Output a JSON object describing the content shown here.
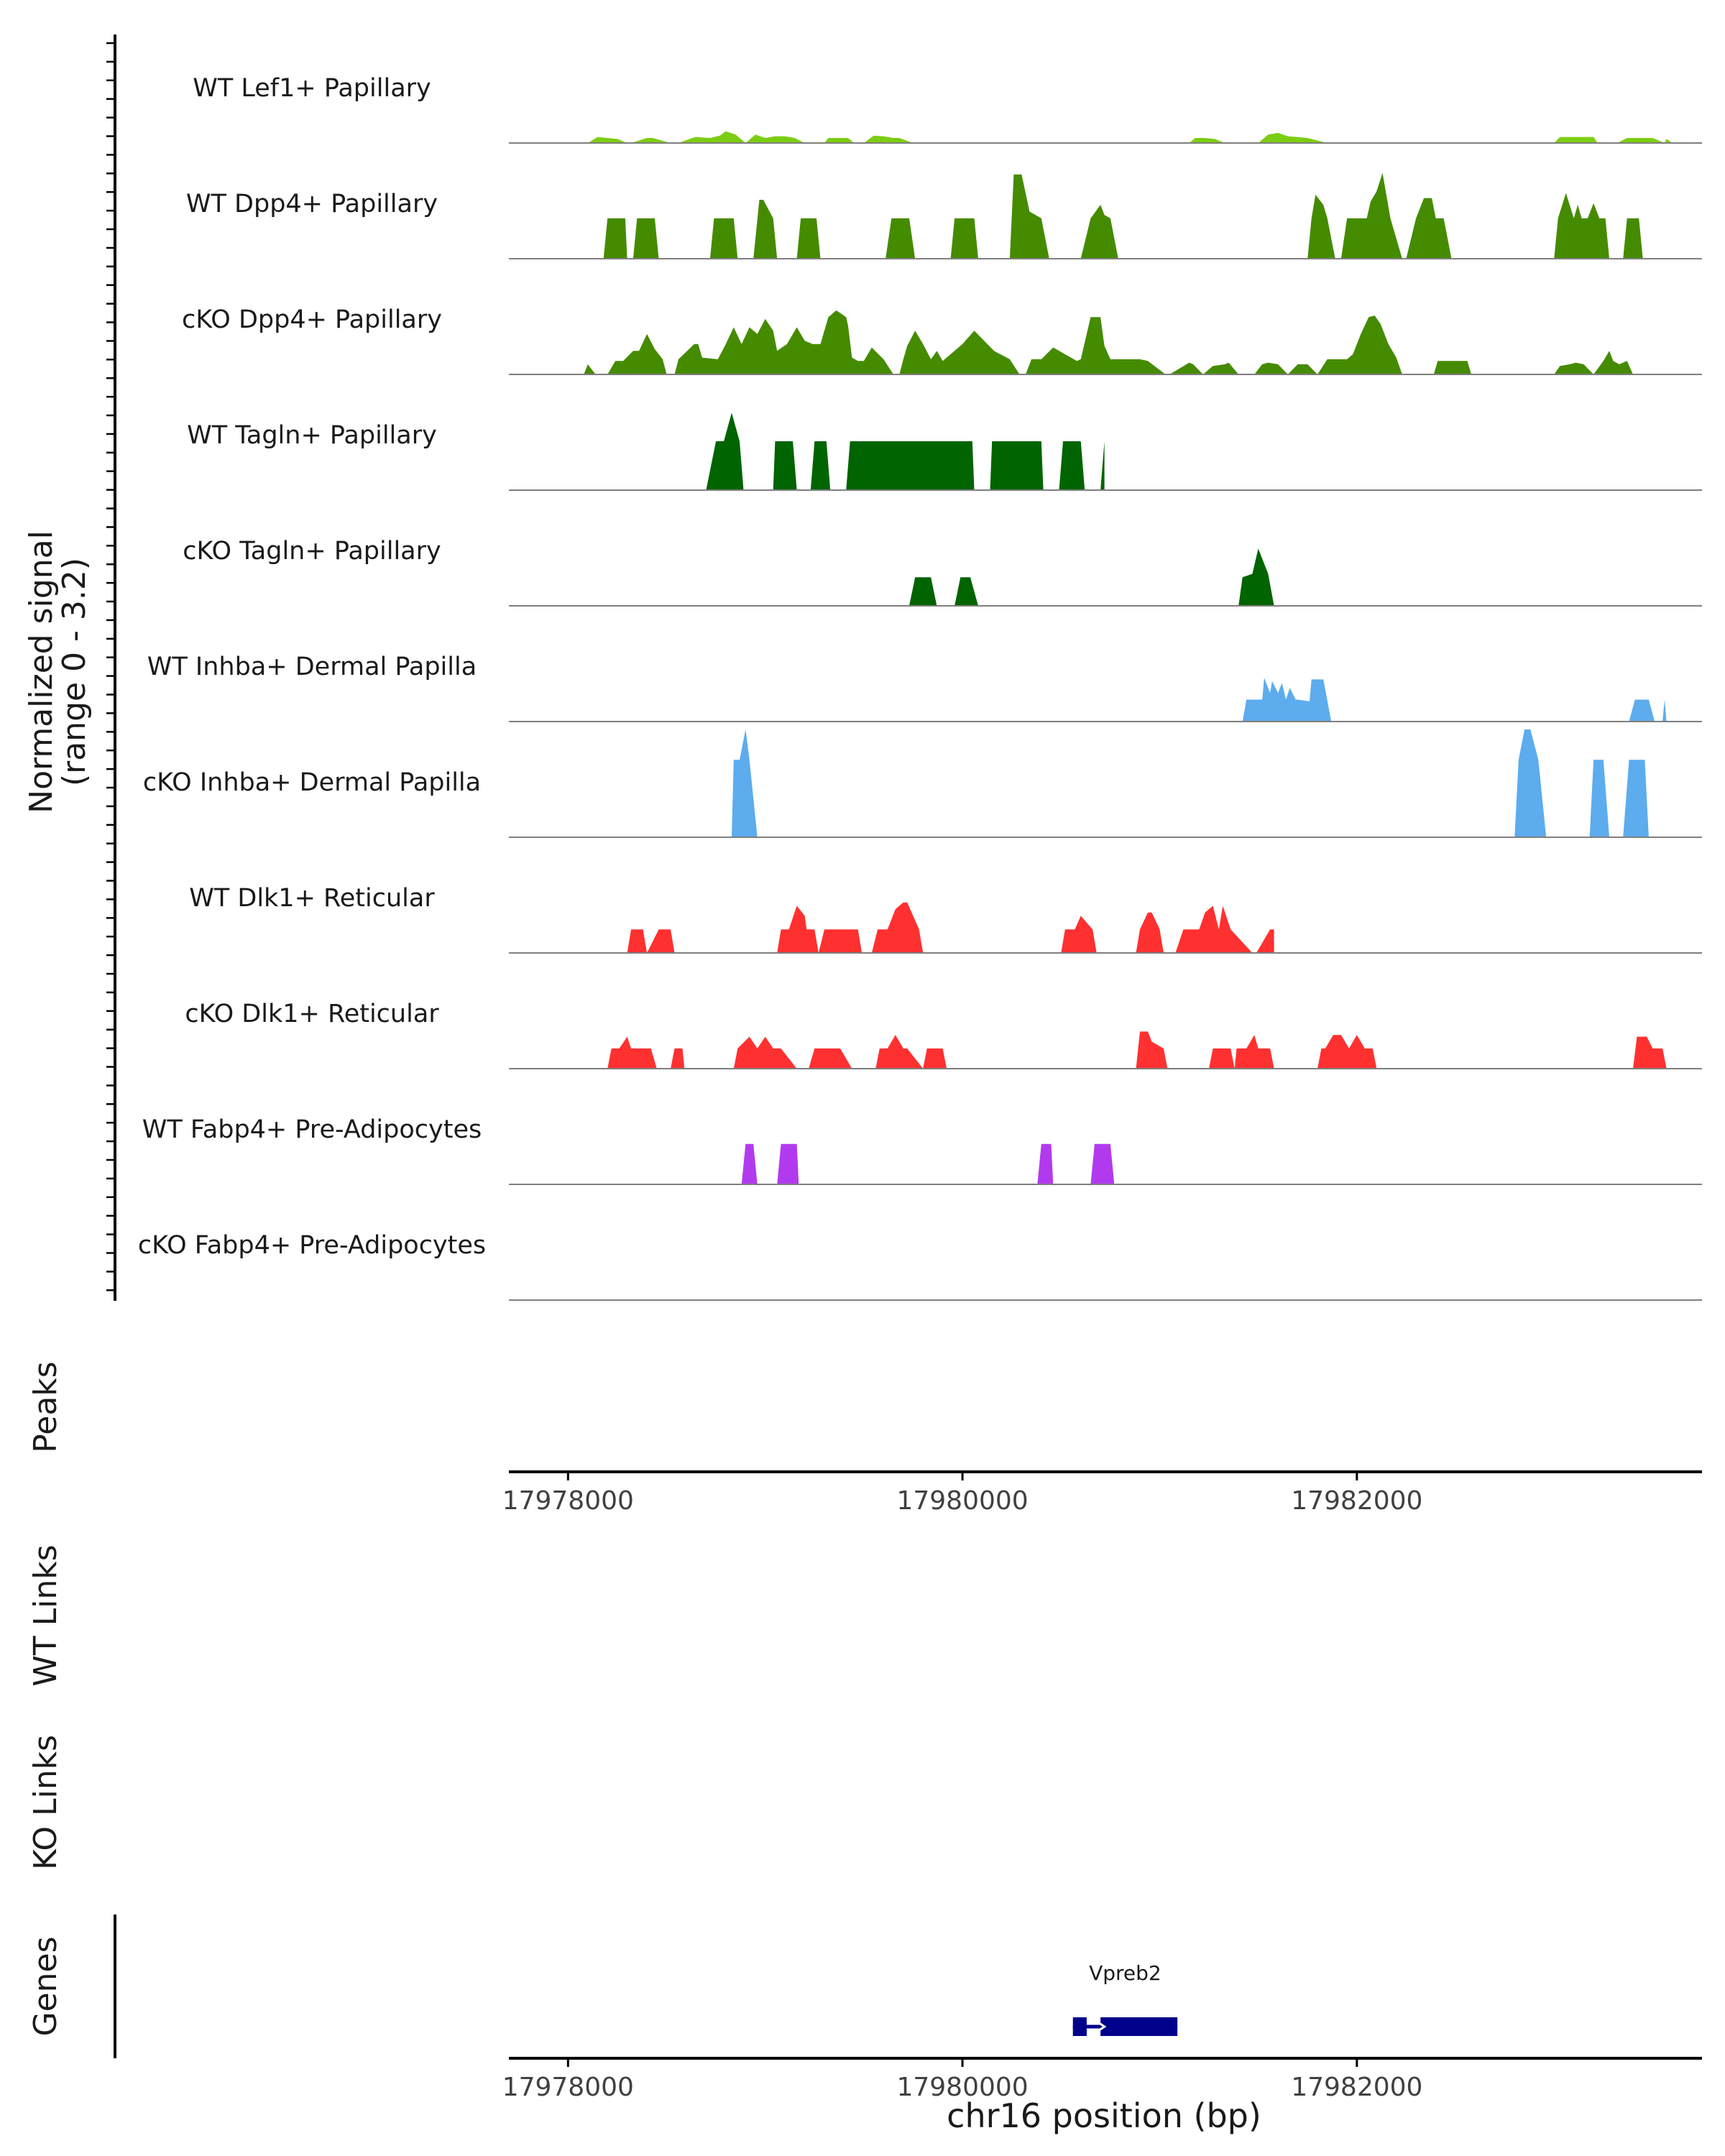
{
  "chart_data": {
    "type": "area",
    "title": "",
    "chromosome": "chr16",
    "xlabel": "chr16 position (bp)",
    "xlim": [
      17977700,
      17983750
    ],
    "xticks": [
      17978000,
      17980000,
      17982000
    ],
    "xtick_labels": [
      "17978000",
      "17980000",
      "17982000"
    ],
    "coverage_ylabel": [
      "Normalized signal",
      "(range 0 - 3.2)"
    ],
    "coverage_range": [
      0,
      3.2
    ],
    "tracks": [
      {
        "name": "WT Lef1+ Papillary",
        "color": "#7CCD11",
        "x": [
          17978100,
          17978150,
          17978250,
          17978300,
          17978320,
          17978400,
          17978430,
          17978520,
          17978560,
          17978630,
          17978650,
          17978720,
          17978770,
          17978800,
          17978850,
          17978900,
          17978950,
          17979000,
          17979050,
          17979100,
          17979150,
          17979200,
          17979300,
          17979320,
          17979420,
          17979450,
          17979500,
          17979550,
          17979600,
          17979650,
          17979680,
          17979750,
          17981150,
          17981180,
          17981230,
          17981280,
          17981330,
          17981500,
          17981550,
          17981600,
          17981650,
          17981700,
          17981750,
          17981850,
          17983000,
          17983030,
          17983200,
          17983220,
          17983320,
          17983370,
          17983500,
          17983560,
          17983570,
          17983600
        ],
        "y": [
          0,
          0.18,
          0.12,
          0,
          0,
          0.15,
          0.15,
          0,
          0,
          0.15,
          0.18,
          0.15,
          0.22,
          0.35,
          0.25,
          0,
          0.25,
          0.15,
          0.2,
          0.2,
          0.15,
          0,
          0,
          0.15,
          0.15,
          0,
          0,
          0.22,
          0.2,
          0.15,
          0.15,
          0,
          0,
          0.15,
          0.15,
          0.12,
          0,
          0,
          0.25,
          0.3,
          0.2,
          0.18,
          0.15,
          0,
          0,
          0.18,
          0.18,
          0,
          0,
          0.15,
          0.15,
          0,
          0.12,
          0
        ]
      },
      {
        "name": "WT Dpp4+ Papillary",
        "color": "#458B00",
        "x": [
          17978180,
          17978200,
          17978290,
          17978300,
          17978330,
          17978350,
          17978440,
          17978460,
          17978720,
          17978740,
          17978840,
          17978860,
          17978940,
          17978970,
          17978990,
          17979040,
          17979060,
          17979160,
          17979180,
          17979260,
          17979280,
          17979610,
          17979640,
          17979730,
          17979760,
          17979940,
          17979960,
          17980060,
          17980080,
          17980240,
          17980260,
          17980300,
          17980340,
          17980400,
          17980440,
          17980600,
          17980650,
          17980700,
          17980720,
          17980750,
          17980790,
          17981750,
          17981770,
          17981790,
          17981830,
          17981850,
          17981890,
          17981920,
          17981950,
          17982050,
          17982070,
          17982100,
          17982130,
          17982170,
          17982230,
          17982250,
          17982300,
          17982340,
          17982380,
          17982400,
          17982440,
          17982480,
          17982580,
          17983000,
          17983020,
          17983060,
          17983100,
          17983120,
          17983140,
          17983170,
          17983200,
          17983230,
          17983260,
          17983280,
          17983300,
          17983350,
          17983370,
          17983430,
          17983450
        ],
        "y": [
          0,
          1.2,
          1.2,
          0,
          0,
          1.2,
          1.2,
          0,
          0,
          1.2,
          1.2,
          0,
          0,
          1.75,
          1.75,
          1.2,
          0,
          0,
          1.2,
          1.2,
          0,
          0,
          1.2,
          1.2,
          0,
          0,
          1.2,
          1.2,
          0,
          0,
          2.5,
          2.5,
          1.4,
          1.2,
          0,
          0,
          1.2,
          1.6,
          1.3,
          1.2,
          0,
          0,
          1.2,
          1.9,
          1.6,
          1.2,
          0,
          0,
          1.2,
          1.2,
          1.7,
          2.0,
          2.55,
          1.2,
          0,
          0,
          1.2,
          1.8,
          1.8,
          1.2,
          1.2,
          0,
          0,
          0,
          1.2,
          1.95,
          1.2,
          1.6,
          1.2,
          1.2,
          1.65,
          1.2,
          1.2,
          0,
          0,
          0,
          1.2,
          1.2,
          0
        ]
      },
      {
        "name": "cKO Dpp4+ Papillary",
        "color": "#458B00",
        "x": [
          17978080,
          17978100,
          17978140,
          17978200,
          17978240,
          17978280,
          17978330,
          17978360,
          17978400,
          17978440,
          17978480,
          17978500,
          17978540,
          17978560,
          17978640,
          17978660,
          17978680,
          17978760,
          17978800,
          17978840,
          17978880,
          17978920,
          17978960,
          17979000,
          17979040,
          17979060,
          17979110,
          17979160,
          17979200,
          17979240,
          17979280,
          17979320,
          17979360,
          17979410,
          17979420,
          17979440,
          17979470,
          17979500,
          17979540,
          17979600,
          17979650,
          17979680,
          17979700,
          17979720,
          17979760,
          17979800,
          17979840,
          17979870,
          17979900,
          17980000,
          17980060,
          17980160,
          17980240,
          17980290,
          17980320,
          17980350,
          17980400,
          17980460,
          17980580,
          17980600,
          17980650,
          17980700,
          17980720,
          17980750,
          17980900,
          17980940,
          17981030,
          17981050,
          17981150,
          17981170,
          17981220,
          17981270,
          17981330,
          17981350,
          17981400,
          17981480,
          17981520,
          17981550,
          17981600,
          17981650,
          17981700,
          17981750,
          17981800,
          17981850,
          17981870,
          17981950,
          17981980,
          17982020,
          17982060,
          17982090,
          17982120,
          17982160,
          17982200,
          17982230,
          17982390,
          17982410,
          17982560,
          17982580,
          17983000,
          17983030,
          17983080,
          17983110,
          17983150,
          17983200,
          17983250,
          17983280,
          17983300,
          17983330,
          17983370,
          17983400
        ],
        "y": [
          0,
          0.3,
          0,
          0,
          0.4,
          0.4,
          0.7,
          0.7,
          1.2,
          0.75,
          0.45,
          0,
          0,
          0.45,
          0.9,
          0.9,
          0.5,
          0.45,
          0.9,
          1.4,
          0.9,
          1.4,
          1.2,
          1.65,
          1.3,
          0.7,
          0.9,
          1.4,
          1.0,
          0.9,
          0.9,
          1.7,
          1.9,
          1.7,
          1.45,
          0.5,
          0.4,
          0.4,
          0.8,
          0.45,
          0,
          0,
          0.45,
          0.85,
          1.3,
          0.9,
          0.45,
          0.7,
          0.4,
          0.9,
          1.3,
          0.7,
          0.45,
          0,
          0,
          0.45,
          0.45,
          0.8,
          0.4,
          0.45,
          1.7,
          1.7,
          0.85,
          0.45,
          0.45,
          0.4,
          0,
          0,
          0.35,
          0.3,
          0,
          0.25,
          0.3,
          0.35,
          0,
          0,
          0.3,
          0.35,
          0.3,
          0,
          0.3,
          0.3,
          0,
          0.45,
          0.45,
          0.45,
          0.6,
          1.2,
          1.7,
          1.75,
          1.5,
          0.9,
          0.5,
          0,
          0,
          0.4,
          0.4,
          0,
          0,
          0.25,
          0.3,
          0.35,
          0.3,
          0,
          0.4,
          0.7,
          0.4,
          0.3,
          0.4,
          0
        ]
      },
      {
        "name": "WT Tagln+ Papillary",
        "color": "#006400",
        "x": [
          17978700,
          17978750,
          17978790,
          17978830,
          17978870,
          17978890,
          17979040,
          17979050,
          17979140,
          17979160,
          17979230,
          17979250,
          17979310,
          17979330,
          17979410,
          17979430,
          17980050,
          17980060,
          17980140,
          17980150,
          17980400,
          17980410,
          17980490,
          17980510,
          17980600,
          17980620,
          17980700,
          17980720
        ],
        "y": [
          0,
          1.45,
          1.45,
          2.3,
          1.45,
          0,
          0,
          1.45,
          1.45,
          0,
          0,
          1.45,
          1.45,
          0,
          0,
          1.45,
          1.45,
          0,
          0,
          1.45,
          1.45,
          0,
          0,
          1.45,
          1.45,
          0,
          0,
          1.45
        ],
        "y_close": [
          0,
          1.45,
          1.45,
          2.3,
          1.45,
          0,
          0,
          1.45,
          1.45,
          0,
          0,
          1.45,
          1.45,
          0,
          0,
          1.45,
          1.45,
          0,
          0,
          1.45,
          1.45,
          0,
          0,
          1.45,
          1.45,
          0,
          0,
          1.45
        ]
      },
      {
        "name": "cKO Tagln+ Papillary",
        "color": "#006400",
        "x": [
          17979730,
          17979760,
          17979840,
          17979870,
          17979960,
          17979990,
          17980040,
          17980080,
          17981400,
          17981420,
          17981470,
          17981500,
          17981550,
          17981580
        ],
        "y": [
          0,
          0.85,
          0.85,
          0,
          0,
          0.85,
          0.85,
          0,
          0,
          0.85,
          0.95,
          1.7,
          0.95,
          0
        ]
      },
      {
        "name": "WT Inhba+ Dermal Papilla",
        "color": "#5CACEE",
        "x": [
          17981420,
          17981440,
          17981520,
          17981530,
          17981560,
          17981570,
          17981600,
          17981620,
          17981640,
          17981660,
          17981690,
          17981700,
          17981760,
          17981770,
          17981830,
          17981870,
          17983380,
          17983410,
          17983480,
          17983510,
          17983550,
          17983560,
          17983570
        ],
        "y": [
          0,
          0.65,
          0.65,
          1.3,
          0.85,
          1.2,
          0.85,
          1.15,
          0.65,
          1.0,
          0.65,
          0.65,
          0.6,
          1.25,
          1.25,
          0,
          0,
          0.65,
          0.65,
          0,
          0,
          0.65,
          0
        ]
      },
      {
        "name": "cKO Inhba+ Dermal Papilla",
        "color": "#5CACEE",
        "x": [
          17978830,
          17978840,
          17978870,
          17978900,
          17978920,
          17978960,
          17982800,
          17982820,
          17982850,
          17982880,
          17982920,
          17982960,
          17983180,
          17983200,
          17983250,
          17983280,
          17983350,
          17983380,
          17983460,
          17983480
        ],
        "y": [
          0,
          2.3,
          2.3,
          3.2,
          2.3,
          0,
          0,
          2.3,
          3.2,
          3.2,
          2.3,
          0,
          0,
          2.3,
          2.3,
          0,
          0,
          2.3,
          2.3,
          0
        ]
      },
      {
        "name": "WT Dlk1+ Reticular",
        "color": "#FF3030",
        "x": [
          17978300,
          17978320,
          17978380,
          17978400,
          17978460,
          17978480,
          17978520,
          17978540,
          17979060,
          17979080,
          17979120,
          17979160,
          17979200,
          17979210,
          17979250,
          17979270,
          17979300,
          17979350,
          17979470,
          17979490,
          17979540,
          17979570,
          17979620,
          17979660,
          17979700,
          17979720,
          17979780,
          17979800,
          17980500,
          17980520,
          17980570,
          17980600,
          17980660,
          17980680,
          17980880,
          17980900,
          17980940,
          17980960,
          17981000,
          17981020,
          17981080,
          17981120,
          17981200,
          17981230,
          17981270,
          17981300,
          17981320,
          17981360,
          17981470,
          17981490,
          17981560,
          17981580
        ],
        "y": [
          0,
          0.7,
          0.7,
          0,
          0.7,
          0.7,
          0.7,
          0,
          0,
          0.7,
          0.7,
          1.4,
          1.1,
          0.7,
          0.7,
          0,
          0.7,
          0.7,
          0.7,
          0,
          0,
          0.7,
          0.7,
          1.3,
          1.5,
          1.5,
          0.7,
          0,
          0,
          0.7,
          0.7,
          1.1,
          0.7,
          0,
          0,
          0.7,
          1.2,
          1.2,
          0.7,
          0,
          0,
          0.7,
          0.7,
          1.2,
          1.4,
          0.7,
          1.4,
          0.7,
          0,
          0,
          0.7,
          0.7
        ]
      },
      {
        "name": "cKO Dlk1+ Reticular",
        "color": "#FF3030",
        "x": [
          17978200,
          17978220,
          17978260,
          17978300,
          17978320,
          17978380,
          17978420,
          17978450,
          17978520,
          17978540,
          17978580,
          17978590,
          17978600,
          17978840,
          17978860,
          17978920,
          17978960,
          17979000,
          17979040,
          17979080,
          17979160,
          17979220,
          17979250,
          17979280,
          17979380,
          17979440,
          17979560,
          17979580,
          17979620,
          17979660,
          17979700,
          17979720,
          17979800,
          17979820,
          17979900,
          17979920,
          17980880,
          17980900,
          17980940,
          17980960,
          17981020,
          17981040,
          17981250,
          17981270,
          17981360,
          17981380,
          17981390,
          17981440,
          17981480,
          17981500,
          17981560,
          17981580,
          17981800,
          17981820,
          17981840,
          17981880,
          17981920,
          17981960,
          17982000,
          17982040,
          17982080,
          17982100,
          17983400,
          17983420,
          17983470,
          17983500,
          17983550,
          17983570
        ],
        "y": [
          0,
          0.6,
          0.6,
          0.95,
          0.6,
          0.6,
          0.6,
          0,
          0,
          0.6,
          0.6,
          0,
          0,
          0,
          0.6,
          0.95,
          0.6,
          0.95,
          0.6,
          0.6,
          0,
          0,
          0.6,
          0.6,
          0.6,
          0,
          0,
          0.6,
          0.6,
          1.0,
          0.6,
          0.6,
          0,
          0.6,
          0.6,
          0,
          0,
          1.1,
          1.1,
          0.8,
          0.6,
          0,
          0,
          0.6,
          0.6,
          0,
          0.6,
          0.6,
          1.0,
          0.6,
          0.6,
          0,
          0,
          0.6,
          0.6,
          1.0,
          1.0,
          0.6,
          1.0,
          0.6,
          0.6,
          0,
          0,
          0.95,
          0.95,
          0.6,
          0.6,
          0
        ]
      },
      {
        "name": "WT Fabp4+ Pre-Adipocytes",
        "color": "#B23AEE",
        "x": [
          17978880,
          17978900,
          17978940,
          17978960,
          17979060,
          17979080,
          17979160,
          17979170,
          17980380,
          17980400,
          17980450,
          17980460,
          17980650,
          17980670,
          17980750,
          17980770
        ],
        "y": [
          0,
          1.2,
          1.2,
          0,
          0,
          1.2,
          1.2,
          0,
          0,
          1.2,
          1.2,
          0,
          0,
          1.2,
          1.2,
          0
        ]
      },
      {
        "name": "cKO Fabp4+ Pre-Adipocytes",
        "color": "#B23AEE",
        "x": [],
        "y": []
      }
    ],
    "peaks_label": "Peaks",
    "wt_links_label": "WT Links",
    "ko_links_label": "KO Links",
    "genes_label": "Genes",
    "genes": [
      {
        "name": "Vpreb2",
        "strand": "+",
        "start": 17980560,
        "end": 17981090,
        "exons": [
          [
            17980560,
            17980630
          ],
          [
            17980700,
            17981090
          ]
        ],
        "color": "#00008B"
      }
    ]
  }
}
